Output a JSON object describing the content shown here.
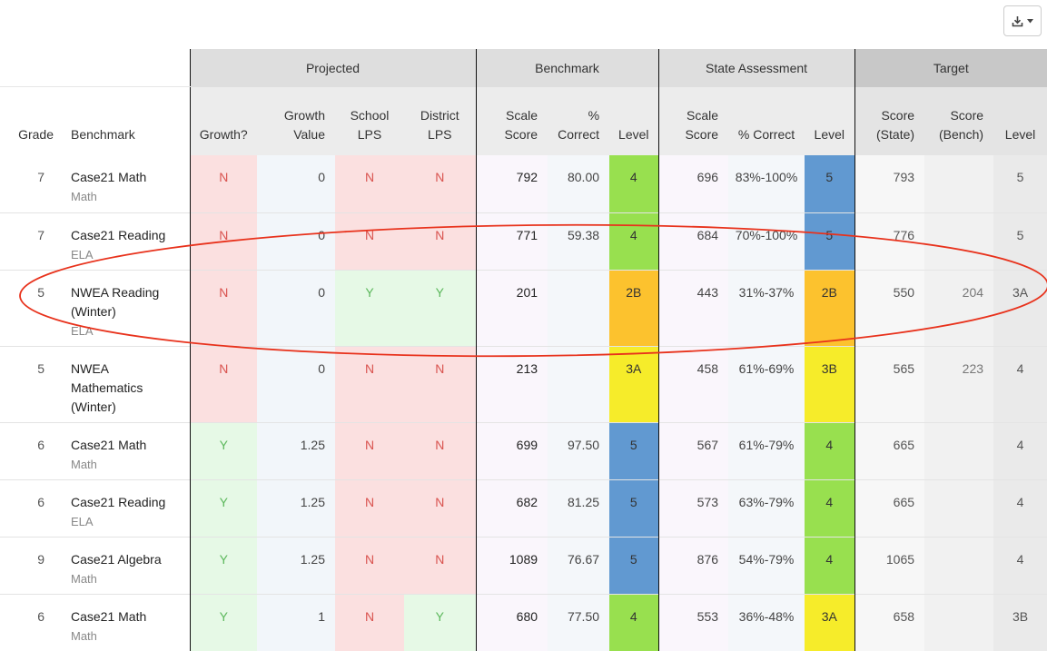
{
  "toolbar": {
    "export_icon": "download-icon",
    "caret_icon": "caret-down-icon"
  },
  "groups": {
    "projected": "Projected",
    "benchmark": "Benchmark",
    "state": "State Assessment",
    "target": "Target"
  },
  "columns": {
    "grade": "Grade",
    "benchmark": "Benchmark",
    "growth": "Growth?",
    "growth_value": [
      "Growth",
      "Value"
    ],
    "school_lps": [
      "School",
      "LPS"
    ],
    "district_lps": [
      "District",
      "LPS"
    ],
    "bench_scale": [
      "Scale",
      "Score"
    ],
    "bench_pct": [
      "%",
      "Correct"
    ],
    "bench_level": "Level",
    "state_scale": [
      "Scale",
      "Score"
    ],
    "state_pct": "% Correct",
    "state_level": "Level",
    "target_state": [
      "Score",
      "(State)"
    ],
    "target_bench": [
      "Score",
      "(Bench)"
    ],
    "target_level": "Level"
  },
  "colors": {
    "red_text": "#d9534f",
    "green_text": "#5cb85c",
    "level_green": "#98e04f",
    "level_blue": "#6199d1",
    "level_orange": "#fcc22e",
    "level_yellow": "#f6ec2a",
    "circle": "#e8321c"
  },
  "rows": [
    {
      "grade": "7",
      "benchmark": "Case21 Math",
      "subject": "Math",
      "growth": "N",
      "growth_value": "0",
      "school": "N",
      "district": "N",
      "bench_scale": "792",
      "bench_pct": "80.00",
      "bench_level": "4",
      "bench_color": "green",
      "state_scale": "696",
      "state_pct": "83%-100%",
      "state_level": "5",
      "state_color": "blue",
      "t_state": "793",
      "t_bench": "",
      "t_level": "5"
    },
    {
      "grade": "7",
      "benchmark": "Case21 Reading",
      "subject": "ELA",
      "growth": "N",
      "growth_value": "0",
      "school": "N",
      "district": "N",
      "bench_scale": "771",
      "bench_pct": "59.38",
      "bench_level": "4",
      "bench_color": "green",
      "state_scale": "684",
      "state_pct": "70%-100%",
      "state_level": "5",
      "state_color": "blue",
      "t_state": "776",
      "t_bench": "",
      "t_level": "5"
    },
    {
      "grade": "5",
      "benchmark": "NWEA Reading (Winter)",
      "subject": "ELA",
      "growth": "N",
      "growth_value": "0",
      "school": "Y",
      "district": "Y",
      "bench_scale": "201",
      "bench_pct": "",
      "bench_level": "2B",
      "bench_color": "orange",
      "state_scale": "443",
      "state_pct": "31%-37%",
      "state_level": "2B",
      "state_color": "orange",
      "t_state": "550",
      "t_bench": "204",
      "t_level": "3A"
    },
    {
      "grade": "5",
      "benchmark": "NWEA Mathematics (Winter)",
      "subject": "",
      "growth": "N",
      "growth_value": "0",
      "school": "N",
      "district": "N",
      "bench_scale": "213",
      "bench_pct": "",
      "bench_level": "3A",
      "bench_color": "yellow",
      "state_scale": "458",
      "state_pct": "61%-69%",
      "state_level": "3B",
      "state_color": "yellow",
      "t_state": "565",
      "t_bench": "223",
      "t_level": "4"
    },
    {
      "grade": "6",
      "benchmark": "Case21 Math",
      "subject": "Math",
      "growth": "Y",
      "growth_value": "1.25",
      "school": "N",
      "district": "N",
      "bench_scale": "699",
      "bench_pct": "97.50",
      "bench_level": "5",
      "bench_color": "blue",
      "state_scale": "567",
      "state_pct": "61%-79%",
      "state_level": "4",
      "state_color": "green",
      "t_state": "665",
      "t_bench": "",
      "t_level": "4"
    },
    {
      "grade": "6",
      "benchmark": "Case21 Reading",
      "subject": "ELA",
      "growth": "Y",
      "growth_value": "1.25",
      "school": "N",
      "district": "N",
      "bench_scale": "682",
      "bench_pct": "81.25",
      "bench_level": "5",
      "bench_color": "blue",
      "state_scale": "573",
      "state_pct": "63%-79%",
      "state_level": "4",
      "state_color": "green",
      "t_state": "665",
      "t_bench": "",
      "t_level": "4"
    },
    {
      "grade": "9",
      "benchmark": "Case21 Algebra",
      "subject": "Math",
      "growth": "Y",
      "growth_value": "1.25",
      "school": "N",
      "district": "N",
      "bench_scale": "1089",
      "bench_pct": "76.67",
      "bench_level": "5",
      "bench_color": "blue",
      "state_scale": "876",
      "state_pct": "54%-79%",
      "state_level": "4",
      "state_color": "green",
      "t_state": "1065",
      "t_bench": "",
      "t_level": "4"
    },
    {
      "grade": "6",
      "benchmark": "Case21 Math",
      "subject": "Math",
      "growth": "Y",
      "growth_value": "1",
      "school": "N",
      "district": "Y",
      "bench_scale": "680",
      "bench_pct": "77.50",
      "bench_level": "4",
      "bench_color": "green",
      "state_scale": "553",
      "state_pct": "36%-48%",
      "state_level": "3A",
      "state_color": "yellow",
      "t_state": "658",
      "t_bench": "",
      "t_level": "3B"
    }
  ]
}
